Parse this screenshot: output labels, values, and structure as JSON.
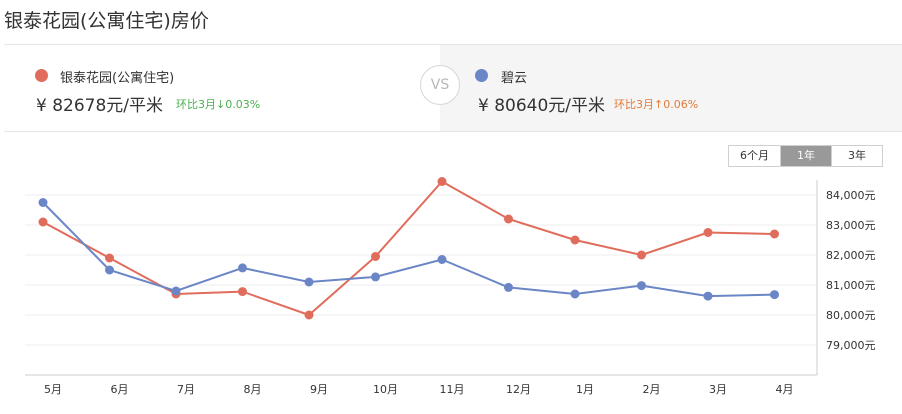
{
  "title": "银泰花园(公寓住宅)房价",
  "left": {
    "name": "银泰花园(公寓住宅)",
    "price": "¥ 82678元/平米",
    "change": "环比3月↓0.03%",
    "color": "#e06c5c",
    "change_color": "#4caf50"
  },
  "vs": "VS",
  "right": {
    "name": "碧云",
    "price": "¥ 80640元/平米",
    "change": "环比3月↑0.06%",
    "color": "#6b86c7",
    "change_color": "#e07b39"
  },
  "tabs": [
    {
      "label": "6个月",
      "active": false
    },
    {
      "label": "1年",
      "active": true
    },
    {
      "label": "3年",
      "active": false
    }
  ],
  "chart_data": {
    "type": "line",
    "categories": [
      "5月",
      "6月",
      "7月",
      "8月",
      "9月",
      "10月",
      "11月",
      "12月",
      "1月",
      "2月",
      "3月",
      "4月"
    ],
    "series": [
      {
        "name": "银泰花园(公寓住宅)",
        "color": "#e06c5c",
        "values": [
          83100,
          81900,
          80700,
          80780,
          80000,
          81950,
          84450,
          83200,
          82500,
          82000,
          82750,
          82700
        ]
      },
      {
        "name": "碧云",
        "color": "#6b86c7",
        "values": [
          83750,
          81500,
          80800,
          81570,
          81100,
          81270,
          81850,
          80920,
          80700,
          80980,
          80630,
          80680
        ]
      }
    ],
    "yticks": [
      79000,
      80000,
      81000,
      82000,
      83000,
      84000
    ],
    "ytick_labels": [
      "79,000元",
      "80,000元",
      "81,000元",
      "82,000元",
      "83,000元",
      "84,000元"
    ],
    "grid": true
  }
}
